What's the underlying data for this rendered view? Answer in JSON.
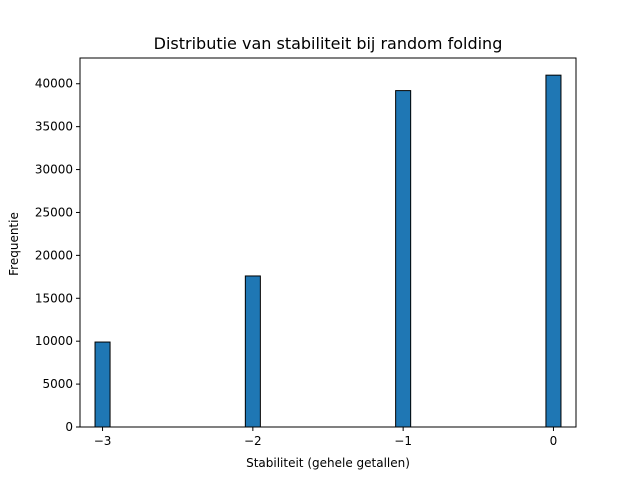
{
  "chart_data": {
    "type": "bar",
    "title": "Distributie van stabiliteit bij random folding",
    "xlabel": "Stabiliteit (gehele getallen)",
    "ylabel": "Frequentie",
    "x": [
      -3,
      -2,
      -1,
      0
    ],
    "values": [
      9900,
      17600,
      39200,
      41000
    ],
    "xlim": [
      -3.15,
      0.15
    ],
    "ylim": [
      0,
      43000
    ],
    "xticks": [
      -3,
      -2,
      -1,
      0
    ],
    "xtick_labels": [
      "−3",
      "−2",
      "−1",
      "0"
    ],
    "yticks": [
      0,
      5000,
      10000,
      15000,
      20000,
      25000,
      30000,
      35000,
      40000
    ],
    "ytick_labels": [
      "0",
      "5000",
      "10000",
      "15000",
      "20000",
      "25000",
      "30000",
      "35000",
      "40000"
    ],
    "bar_width": 0.1,
    "grid": false,
    "legend": "none",
    "colors": {
      "bar_fill": "#1f77b4",
      "bar_edge": "#000000"
    }
  }
}
